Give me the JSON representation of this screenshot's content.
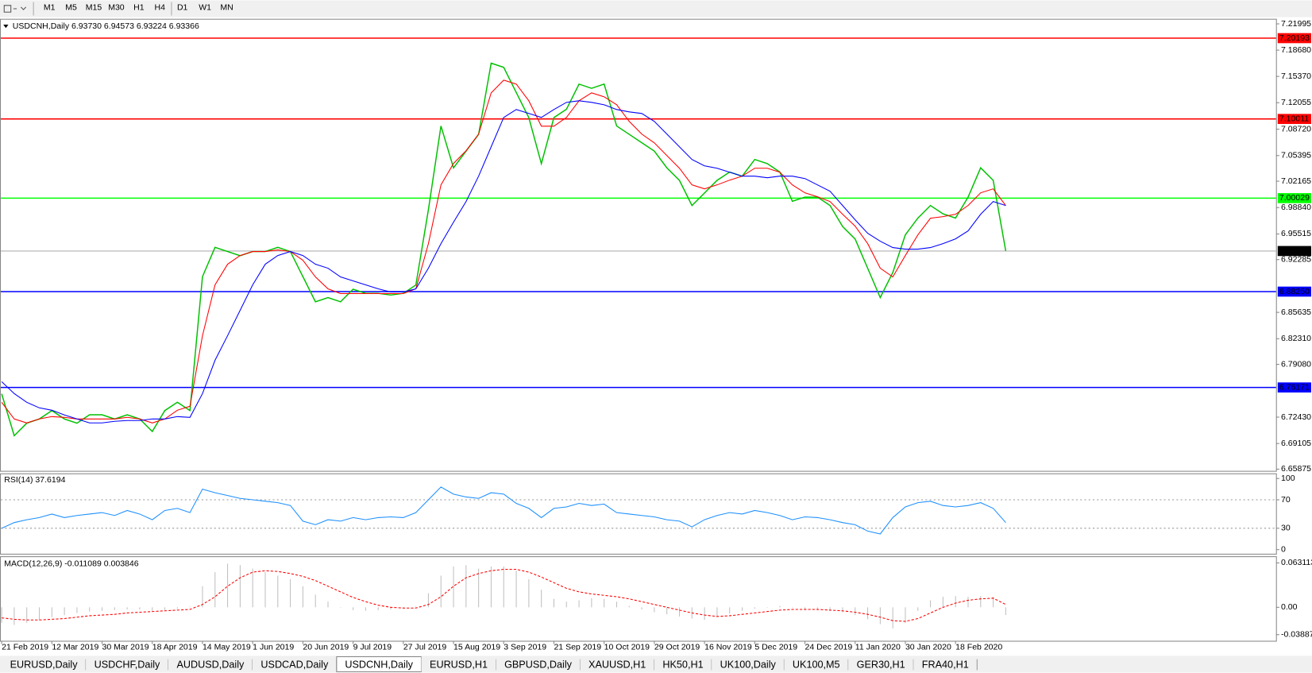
{
  "toolbar": {
    "timeframes": [
      "M1",
      "M5",
      "M15",
      "M30",
      "H1",
      "H4",
      "D1",
      "W1",
      "MN"
    ]
  },
  "chart_data": [
    {
      "type": "line",
      "title": "USDCNH,Daily 6.93730 6.94573 6.93224 6.93366",
      "categories": [
        "21 Feb 2019",
        null,
        null,
        null,
        "12 Mar 2019",
        null,
        null,
        null,
        "30 Mar 2019",
        null,
        null,
        null,
        "18 Apr 2019",
        null,
        null,
        null,
        "14 May 2019",
        null,
        null,
        null,
        "1 Jun 2019",
        null,
        null,
        null,
        "20 Jun 2019",
        null,
        null,
        null,
        "9 Jul 2019",
        null,
        null,
        null,
        "27 Jul 2019",
        null,
        null,
        null,
        "15 Aug 2019",
        null,
        null,
        null,
        "3 Sep 2019",
        null,
        null,
        null,
        "21 Sep 2019",
        null,
        null,
        null,
        "10 Oct 2019",
        null,
        null,
        null,
        "29 Oct 2019",
        null,
        null,
        null,
        "16 Nov 2019",
        null,
        null,
        null,
        "5 Dec 2019",
        null,
        null,
        null,
        "24 Dec 2019",
        null,
        null,
        null,
        "11 Jan 2020",
        null,
        null,
        null,
        "30 Jan 2020",
        null,
        null,
        null,
        "18 Feb 2020",
        null,
        null,
        null,
        null
      ],
      "series": [
        {
          "color": "#00c000",
          "values": [
            6.7537,
            6.7009,
            6.7167,
            6.722,
            6.7326,
            6.722,
            6.7167,
            6.7273,
            6.7273,
            6.722,
            6.7273,
            6.722,
            6.7062,
            6.7326,
            6.7431,
            6.7326,
            6.9014,
            6.9383,
            6.933,
            6.9277,
            6.933,
            6.933,
            6.9383,
            6.933,
            6.9014,
            6.8697,
            6.875,
            6.8697,
            6.8855,
            6.8803,
            6.8803,
            6.8782,
            6.8803,
            6.8908,
            6.9858,
            7.0912,
            7.0385,
            7.0596,
            7.0807,
            7.1704,
            7.1651,
            7.1334,
            7.1018,
            7.0438,
            7.1018,
            7.1123,
            7.144,
            7.1387,
            7.144,
            7.0912,
            7.0807,
            7.0701,
            7.0596,
            7.0385,
            7.0227,
            6.991,
            7.0068,
            7.0227,
            7.0332,
            7.028,
            7.049,
            7.0438,
            7.0332,
            6.9963,
            7.0016,
            7.0016,
            6.991,
            6.9646,
            6.9488,
            6.9119,
            6.875,
            6.9066,
            6.9541,
            6.9752,
            6.991,
            6.9805,
            6.9752,
            7.0016,
            7.0385,
            7.0227,
            6.9337
          ]
        },
        {
          "color": "#ff0000",
          "values": [
            6.743,
            6.722,
            6.717,
            6.722,
            6.725,
            6.724,
            6.722,
            6.722,
            6.722,
            6.722,
            6.724,
            6.722,
            6.717,
            6.722,
            6.733,
            6.738,
            6.827,
            6.891,
            6.917,
            6.928,
            6.933,
            6.933,
            6.935,
            6.933,
            6.922,
            6.901,
            6.886,
            6.88,
            6.88,
            6.88,
            6.88,
            6.88,
            6.88,
            6.886,
            6.943,
            7.017,
            7.044,
            7.06,
            7.081,
            7.133,
            7.149,
            7.144,
            7.123,
            7.091,
            7.091,
            7.102,
            7.123,
            7.133,
            7.128,
            7.118,
            7.097,
            7.081,
            7.07,
            7.054,
            7.038,
            7.017,
            7.012,
            7.017,
            7.023,
            7.028,
            7.038,
            7.038,
            7.033,
            7.017,
            7.007,
            7.002,
            6.996,
            6.98,
            6.965,
            6.943,
            6.912,
            6.901,
            6.928,
            6.954,
            6.975,
            6.977,
            6.98,
            6.991,
            7.007,
            7.012,
            6.991
          ]
        },
        {
          "color": "#0000ff",
          "values": [
            6.769,
            6.754,
            6.743,
            6.736,
            6.733,
            6.727,
            6.722,
            6.717,
            6.717,
            6.719,
            6.72,
            6.72,
            6.722,
            6.722,
            6.725,
            6.724,
            6.754,
            6.796,
            6.827,
            6.859,
            6.891,
            6.917,
            6.928,
            6.933,
            6.928,
            6.917,
            6.912,
            6.901,
            6.896,
            6.891,
            6.886,
            6.882,
            6.882,
            6.886,
            6.912,
            6.943,
            6.97,
            6.996,
            7.028,
            7.065,
            7.102,
            7.112,
            7.107,
            7.102,
            7.112,
            7.121,
            7.123,
            7.121,
            7.118,
            7.112,
            7.109,
            7.107,
            7.097,
            7.081,
            7.065,
            7.049,
            7.041,
            7.038,
            7.033,
            7.028,
            7.028,
            7.026,
            7.028,
            7.028,
            7.025,
            7.017,
            7.009,
            6.991,
            6.973,
            6.956,
            6.946,
            6.938,
            6.936,
            6.936,
            6.938,
            6.943,
            6.949,
            6.959,
            6.98,
            6.996,
            6.991
          ]
        }
      ],
      "levels": [
        {
          "value": 7.20193,
          "label": "7.20193",
          "color": "#ff0000"
        },
        {
          "value": 7.10011,
          "label": "7.10011",
          "color": "#ff0000"
        },
        {
          "value": 7.00029,
          "label": "7.00029",
          "color": "#00ff00"
        },
        {
          "value": 6.8825,
          "label": "6.88250",
          "color": "#0000ff"
        },
        {
          "value": 6.76171,
          "label": "6.76171",
          "color": "#0000ff"
        }
      ],
      "current_price": 6.93366,
      "ylim": [
        6.6566,
        7.2263
      ],
      "yticks": [
        7.21995,
        {
          "value": 7.1868,
          "label": "7.18680"
        },
        {
          "value": 7.1537,
          "label": "7.15370"
        },
        7.12055,
        {
          "value": 7.0872,
          "label": "7.08720"
        },
        7.05395,
        7.02165,
        {
          "value": 6.9884,
          "label": "6.98840"
        },
        6.95515,
        6.92285,
        6.85635,
        {
          "value": 6.8231,
          "label": "6.82310"
        },
        {
          "value": 6.7908,
          "label": "6.79080"
        },
        {
          "value": 6.7243,
          "label": "6.72430"
        },
        6.69105,
        6.65875
      ]
    },
    {
      "type": "line",
      "title": "RSI(14) 37.6194",
      "series": [
        {
          "color": "#1e90ff",
          "values": [
            30,
            38,
            42,
            45,
            50,
            45,
            48,
            50,
            52,
            48,
            55,
            50,
            42,
            55,
            58,
            52,
            85,
            80,
            76,
            72,
            70,
            68,
            66,
            62,
            40,
            35,
            42,
            40,
            45,
            42,
            45,
            46,
            45,
            52,
            70,
            88,
            78,
            74,
            72,
            80,
            78,
            65,
            58,
            45,
            58,
            60,
            65,
            62,
            64,
            52,
            50,
            48,
            46,
            42,
            40,
            32,
            42,
            48,
            52,
            50,
            55,
            52,
            48,
            42,
            46,
            45,
            42,
            38,
            35,
            26,
            22,
            45,
            60,
            66,
            68,
            62,
            60,
            62,
            66,
            58,
            38
          ]
        }
      ],
      "levels": [
        70,
        30
      ],
      "ylim": [
        -7,
        106
      ],
      "yticks": [
        100,
        70,
        30,
        0
      ]
    },
    {
      "type": "bar",
      "title": "MACD(12,26,9) -0.011089 0.003846",
      "color": "#c0c0c0",
      "values": [
        -0.022,
        -0.025,
        -0.022,
        -0.018,
        -0.014,
        -0.011,
        -0.008,
        -0.006,
        -0.005,
        -0.004,
        -0.003,
        -0.003,
        -0.005,
        -0.004,
        -0.002,
        0.001,
        0.03,
        0.05,
        0.062,
        0.06,
        0.055,
        0.05,
        0.045,
        0.04,
        0.03,
        0.018,
        0.008,
        0.0,
        -0.004,
        -0.005,
        -0.004,
        -0.003,
        -0.002,
        0.001,
        0.02,
        0.045,
        0.058,
        0.06,
        0.055,
        0.058,
        0.058,
        0.052,
        0.04,
        0.025,
        0.012,
        0.008,
        0.01,
        0.013,
        0.012,
        0.008,
        0.002,
        -0.003,
        -0.007,
        -0.01,
        -0.013,
        -0.016,
        -0.018,
        -0.014,
        -0.009,
        -0.005,
        -0.002,
        0.0,
        0.002,
        0.0,
        -0.004,
        -0.004,
        -0.005,
        -0.007,
        -0.011,
        -0.017,
        -0.024,
        -0.03,
        -0.022,
        -0.005,
        0.01,
        0.015,
        0.016,
        0.015,
        0.016,
        0.015,
        -0.011
      ],
      "series": [
        {
          "color": "#ff0000",
          "dashed": true,
          "values": [
            -0.015,
            -0.017,
            -0.018,
            -0.018,
            -0.017,
            -0.016,
            -0.014,
            -0.012,
            -0.011,
            -0.01,
            -0.008,
            -0.007,
            -0.006,
            -0.005,
            -0.004,
            -0.003,
            0.004,
            0.015,
            0.03,
            0.042,
            0.05,
            0.052,
            0.051,
            0.048,
            0.044,
            0.038,
            0.03,
            0.022,
            0.014,
            0.008,
            0.003,
            0.0,
            -0.001,
            -0.001,
            0.004,
            0.015,
            0.03,
            0.042,
            0.048,
            0.052,
            0.054,
            0.054,
            0.05,
            0.043,
            0.035,
            0.027,
            0.022,
            0.019,
            0.017,
            0.015,
            0.012,
            0.008,
            0.004,
            0.0,
            -0.004,
            -0.008,
            -0.011,
            -0.013,
            -0.012,
            -0.01,
            -0.008,
            -0.006,
            -0.004,
            -0.003,
            -0.003,
            -0.003,
            -0.004,
            -0.005,
            -0.007,
            -0.01,
            -0.014,
            -0.019,
            -0.02,
            -0.016,
            -0.008,
            0.0,
            0.006,
            0.01,
            0.012,
            0.013,
            0.004
          ]
        }
      ],
      "ylim": [
        -0.0476,
        0.0714
      ],
      "yticks": [
        0.063113,
        {
          "value": 0,
          "label": "0.00"
        },
        -0.038872
      ]
    }
  ],
  "tabs": {
    "items": [
      "EURUSD,Daily",
      "USDCHF,Daily",
      "AUDUSD,Daily",
      "USDCAD,Daily",
      "USDCNH,Daily",
      "EURUSD,H1",
      "GBPUSD,Daily",
      "XAUUSD,H1",
      "HK50,H1",
      "UK100,Daily",
      "UK100,M5",
      "GER30,H1",
      "FRA40,H1"
    ],
    "active": 4
  }
}
